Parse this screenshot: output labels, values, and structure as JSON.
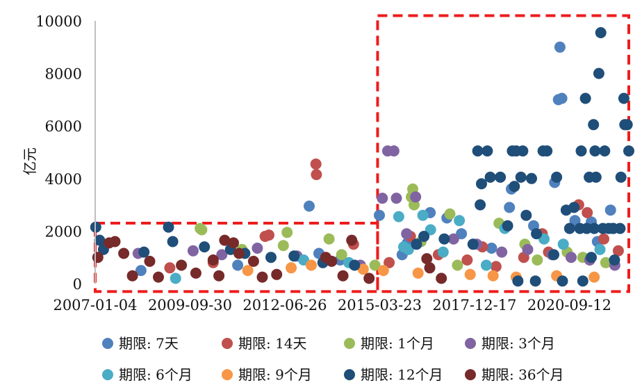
{
  "chart_data": {
    "type": "scatter",
    "title": "",
    "xlabel": "",
    "ylabel": "亿元",
    "ylim": [
      0,
      10000
    ],
    "xlim": [
      "2007-01-04",
      "2022-06-01"
    ],
    "y_ticks": [
      "0",
      "2000",
      "4000",
      "6000",
      "8000",
      "10000"
    ],
    "x_ticks": [
      {
        "label": "2007-01-04",
        "date": "2007-01-04"
      },
      {
        "label": "2009-09-30",
        "date": "2009-09-30"
      },
      {
        "label": "2012-06-26",
        "date": "2012-06-26"
      },
      {
        "label": "2015-03-23",
        "date": "2015-03-23"
      },
      {
        "label": "2017-12-17",
        "date": "2017-12-17"
      },
      {
        "label": "2020-09-12",
        "date": "2020-09-12"
      }
    ],
    "grid": false,
    "legend_position": "bottom",
    "highlight_boxes": [
      {
        "x": [
          "2007-01-04",
          "2015-03-01"
        ],
        "y": [
          -300,
          2300
        ]
      },
      {
        "x": [
          "2015-03-01",
          "2022-06-01"
        ],
        "y": [
          -300,
          10200
        ]
      }
    ],
    "series": [
      {
        "name": "期限: 7天",
        "color": "#4f81bd",
        "points": [
          [
            "2013-03-10",
            2950
          ],
          [
            "2020-06-05",
            9000
          ],
          [
            "2020-06-25",
            7050
          ],
          [
            "2020-05-20",
            7000
          ],
          [
            "2020-04-10",
            3850
          ],
          [
            "2015-03-20",
            2600
          ],
          [
            "2016-01-10",
            1550
          ],
          [
            "2019-01-10",
            3600
          ],
          [
            "2021-11-20",
            2800
          ],
          [
            "2021-12-10",
            2100
          ],
          [
            "2016-09-05",
            2700
          ],
          [
            "2021-05-01",
            2350
          ],
          [
            "2018-06-15",
            1350
          ],
          [
            "2015-11-15",
            1100
          ],
          [
            "2017-03-01",
            2500
          ],
          [
            "2019-09-01",
            2200
          ],
          [
            "2021-07-05",
            1600
          ],
          [
            "2020-11-10",
            2400
          ],
          [
            "2013-06-20",
            1150
          ],
          [
            "2014-01-30",
            900
          ],
          [
            "2008-05-01",
            500
          ],
          [
            "2011-02-15",
            700
          ],
          [
            "2017-08-01",
            1900
          ],
          [
            "2018-12-20",
            2900
          ]
        ]
      },
      {
        "name": "期限: 14天",
        "color": "#c0504d",
        "points": [
          [
            "2013-05-20",
            4550
          ],
          [
            "2013-05-25",
            4150
          ],
          [
            "2011-12-01",
            1800
          ],
          [
            "2012-01-10",
            1850
          ],
          [
            "2014-06-20",
            1500
          ],
          [
            "2016-02-10",
            1800
          ],
          [
            "2018-08-01",
            650
          ],
          [
            "2019-12-01",
            1900
          ],
          [
            "2020-02-05",
            1200
          ],
          [
            "2020-12-20",
            3000
          ],
          [
            "2021-09-10",
            1700
          ],
          [
            "2022-02-10",
            1250
          ],
          [
            "2021-03-20",
            2700
          ],
          [
            "2017-10-01",
            900
          ],
          [
            "2019-05-20",
            1000
          ],
          [
            "2016-12-01",
            1100
          ],
          [
            "2009-03-01",
            600
          ],
          [
            "2010-06-01",
            800
          ],
          [
            "2015-07-01",
            800
          ],
          [
            "2018-03-10",
            1400
          ]
        ]
      },
      {
        "name": "期限: 1个月",
        "color": "#9bbb59",
        "points": [
          [
            "2010-01-15",
            2100
          ],
          [
            "2010-02-01",
            2050
          ],
          [
            "2012-07-20",
            1950
          ],
          [
            "2012-06-10",
            1450
          ],
          [
            "2013-10-05",
            1700
          ],
          [
            "2016-03-05",
            3600
          ],
          [
            "2016-03-20",
            3000
          ],
          [
            "2016-02-20",
            3300
          ],
          [
            "2017-04-01",
            2650
          ],
          [
            "2018-09-01",
            2300
          ],
          [
            "2019-06-01",
            1500
          ],
          [
            "2020-08-20",
            1200
          ],
          [
            "2021-02-01",
            1000
          ],
          [
            "2014-02-15",
            1100
          ],
          [
            "2015-02-01",
            700
          ],
          [
            "2016-06-01",
            1600
          ],
          [
            "2017-06-20",
            700
          ],
          [
            "2019-10-10",
            900
          ],
          [
            "2021-10-01",
            800
          ],
          [
            "2011-04-01",
            1300
          ]
        ]
      },
      {
        "name": "期限: 3个月",
        "color": "#8064a2",
        "points": [
          [
            "2015-06-15",
            5050
          ],
          [
            "2015-08-20",
            5050
          ],
          [
            "2015-04-20",
            3250
          ],
          [
            "2015-09-15",
            3250
          ],
          [
            "2016-04-05",
            3300
          ],
          [
            "2016-01-01",
            1900
          ],
          [
            "2018-01-10",
            1500
          ],
          [
            "2019-07-01",
            1300
          ],
          [
            "2020-03-15",
            1100
          ],
          [
            "2021-04-15",
            900
          ],
          [
            "2022-01-05",
            700
          ],
          [
            "2017-05-10",
            1700
          ],
          [
            "2009-11-01",
            1250
          ],
          [
            "2010-09-01",
            1100
          ],
          [
            "2011-09-10",
            1350
          ],
          [
            "2008-04-01",
            1150
          ],
          [
            "2012-11-01",
            1050
          ],
          [
            "2014-09-01",
            700
          ],
          [
            "2018-10-01",
            1200
          ],
          [
            "2020-10-01",
            1000
          ]
        ]
      },
      {
        "name": "期限: 6个月",
        "color": "#4bacc6",
        "points": [
          [
            "2015-10-10",
            2550
          ],
          [
            "2016-06-20",
            2600
          ],
          [
            "2016-09-10",
            2050
          ],
          [
            "2017-07-10",
            2400
          ],
          [
            "2018-11-01",
            2100
          ],
          [
            "2019-12-20",
            1700
          ],
          [
            "2016-01-20",
            1300
          ],
          [
            "2015-12-01",
            1400
          ],
          [
            "2017-01-20",
            1200
          ],
          [
            "2020-07-10",
            1500
          ],
          [
            "2021-08-01",
            1300
          ],
          [
            "2009-05-01",
            200
          ],
          [
            "2013-01-10",
            900
          ],
          [
            "2014-05-01",
            800
          ],
          [
            "2018-04-20",
            700
          ]
        ]
      },
      {
        "name": "期限: 9个月",
        "color": "#f79646",
        "points": [
          [
            "2012-09-01",
            600
          ],
          [
            "2013-04-01",
            700
          ],
          [
            "2014-10-01",
            550
          ],
          [
            "2015-05-01",
            500
          ],
          [
            "2016-05-01",
            400
          ],
          [
            "2017-11-01",
            350
          ],
          [
            "2018-07-01",
            300
          ],
          [
            "2019-03-01",
            250
          ],
          [
            "2020-05-01",
            300
          ],
          [
            "2021-06-01",
            250
          ],
          [
            "2011-06-01",
            500
          ]
        ]
      },
      {
        "name": "期限: 12个月",
        "color": "#1f4e79",
        "points": [
          [
            "2021-08-10",
            9550
          ],
          [
            "2021-07-20",
            8000
          ],
          [
            "2021-03-01",
            7050
          ],
          [
            "2022-04-10",
            7050
          ],
          [
            "2021-05-25",
            6050
          ],
          [
            "2022-04-20",
            6050
          ],
          [
            "2022-05-15",
            6050
          ],
          [
            "2018-01-20",
            5050
          ],
          [
            "2018-05-01",
            5050
          ],
          [
            "2019-01-20",
            5050
          ],
          [
            "2019-03-01",
            5050
          ],
          [
            "2019-05-10",
            5050
          ],
          [
            "2019-12-10",
            5050
          ],
          [
            "2020-01-20",
            5050
          ],
          [
            "2021-01-15",
            5050
          ],
          [
            "2021-06-10",
            5050
          ],
          [
            "2021-09-20",
            5050
          ],
          [
            "2022-06-01",
            5050
          ],
          [
            "2018-06-01",
            4050
          ],
          [
            "2018-09-15",
            4050
          ],
          [
            "2019-04-20",
            4050
          ],
          [
            "2019-08-10",
            4000
          ],
          [
            "2020-05-01",
            4050
          ],
          [
            "2021-04-10",
            4050
          ],
          [
            "2021-06-20",
            4050
          ],
          [
            "2022-03-10",
            4050
          ],
          [
            "2018-03-01",
            3800
          ],
          [
            "2019-02-10",
            3700
          ],
          [
            "2020-08-10",
            2800
          ],
          [
            "2021-12-20",
            2100
          ],
          [
            "2018-02-15",
            3000
          ],
          [
            "2019-06-15",
            2600
          ],
          [
            "2020-11-01",
            2900
          ],
          [
            "2018-12-01",
            2200
          ],
          [
            "2017-12-01",
            1500
          ],
          [
            "2019-10-01",
            1900
          ],
          [
            "2020-09-15",
            2100
          ],
          [
            "2021-01-01",
            2100
          ],
          [
            "2021-03-15",
            2100
          ],
          [
            "2021-06-01",
            2100
          ],
          [
            "2021-09-01",
            2100
          ],
          [
            "2021-11-01",
            2100
          ],
          [
            "2022-03-01",
            2100
          ],
          [
            "2020-04-01",
            1100
          ],
          [
            "2021-05-01",
            1000
          ],
          [
            "2022-01-01",
            900
          ],
          [
            "2019-03-20",
            100
          ],
          [
            "2019-09-20",
            100
          ],
          [
            "2020-07-01",
            100
          ],
          [
            "2021-02-01",
            100
          ],
          [
            "2007-01-10",
            2150
          ],
          [
            "2009-02-15",
            2150
          ],
          [
            "2007-02-20",
            1650
          ],
          [
            "2007-04-01",
            1300
          ],
          [
            "2008-06-01",
            1200
          ],
          [
            "2009-04-01",
            1600
          ],
          [
            "2010-03-01",
            1400
          ],
          [
            "2010-12-01",
            1300
          ],
          [
            "2011-05-01",
            1150
          ],
          [
            "2012-02-01",
            1000
          ],
          [
            "2012-10-01",
            1050
          ],
          [
            "2013-08-01",
            800
          ],
          [
            "2014-07-01",
            700
          ],
          [
            "2016-07-01",
            1800
          ],
          [
            "2017-02-01",
            1700
          ],
          [
            "2016-04-15",
            1500
          ]
        ]
      },
      {
        "name": "期限: 36个月",
        "color": "#772a2a",
        "points": [
          [
            "2007-06-01",
            1550
          ],
          [
            "2007-08-01",
            1600
          ],
          [
            "2010-10-01",
            1650
          ],
          [
            "2011-01-01",
            1550
          ],
          [
            "2007-02-01",
            1000
          ],
          [
            "2007-11-01",
            1150
          ],
          [
            "2008-08-01",
            850
          ],
          [
            "2009-07-01",
            700
          ],
          [
            "2010-06-01",
            900
          ],
          [
            "2011-03-01",
            1150
          ],
          [
            "2011-08-01",
            850
          ],
          [
            "2008-02-01",
            300
          ],
          [
            "2008-11-01",
            250
          ],
          [
            "2009-12-01",
            400
          ],
          [
            "2010-08-01",
            300
          ],
          [
            "2011-11-01",
            250
          ],
          [
            "2012-04-01",
            350
          ],
          [
            "2013-09-01",
            1000
          ],
          [
            "2013-11-01",
            850
          ],
          [
            "2014-03-01",
            300
          ],
          [
            "2014-12-01",
            200
          ],
          [
            "2014-06-01",
            1650
          ],
          [
            "2016-08-01",
            950
          ],
          [
            "2016-09-01",
            600
          ],
          [
            "2017-01-01",
            200
          ]
        ]
      }
    ],
    "legend": [
      "期限: 7天",
      "期限: 14天",
      "期限: 1个月",
      "期限: 3个月",
      "期限: 6个月",
      "期限: 9个月",
      "期限: 12个月",
      "期限: 36个月"
    ]
  }
}
